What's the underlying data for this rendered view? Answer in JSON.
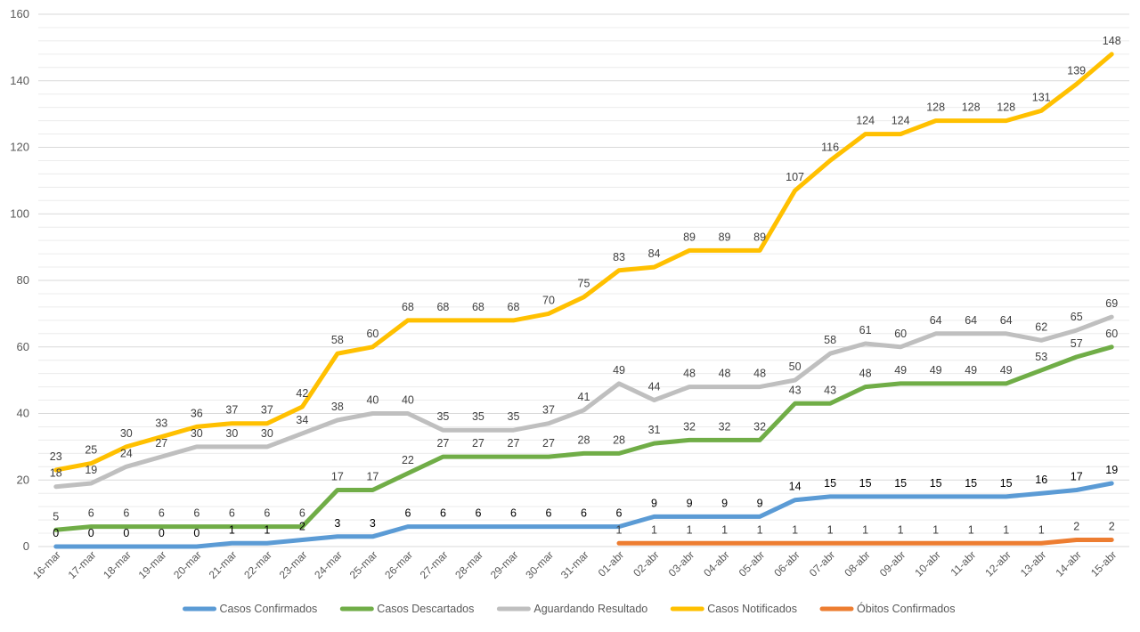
{
  "chart_data": {
    "type": "line",
    "x": [
      "16-mar",
      "17-mar",
      "18-mar",
      "19-mar",
      "20-mar",
      "21-mar",
      "22-mar",
      "23-mar",
      "24-mar",
      "25-mar",
      "26-mar",
      "27-mar",
      "28-mar",
      "29-mar",
      "30-mar",
      "31-mar",
      "01-abr",
      "02-abr",
      "03-abr",
      "04-abr",
      "05-abr",
      "06-abr",
      "07-abr",
      "08-abr",
      "09-abr",
      "10-abr",
      "11-abr",
      "12-abr",
      "13-abr",
      "14-abr",
      "15-abr"
    ],
    "ylim": [
      0,
      160
    ],
    "yticks": [
      0,
      20,
      40,
      60,
      80,
      100,
      120,
      140,
      160
    ],
    "ytick_labels": [
      "0",
      "20",
      "40",
      "60",
      "80",
      "100",
      "120",
      "140",
      "160"
    ],
    "grid": true,
    "legend_position": "bottom",
    "series": [
      {
        "name": "Casos Confirmados",
        "color": "#5B9BD5",
        "values": [
          0,
          0,
          0,
          0,
          0,
          1,
          1,
          2,
          3,
          3,
          6,
          6,
          6,
          6,
          6,
          6,
          6,
          9,
          9,
          9,
          9,
          14,
          15,
          15,
          15,
          15,
          15,
          15,
          16,
          17,
          19
        ],
        "labels": [
          "0",
          "0",
          "0",
          "0",
          "0",
          "1",
          "1",
          "2",
          "3",
          "3",
          "6",
          "6",
          "6",
          "6",
          "6",
          "6",
          "6",
          "9",
          "9",
          "9",
          "9",
          "14",
          "15",
          "15",
          "15",
          "15",
          "15",
          "15",
          "16",
          "17",
          "19"
        ]
      },
      {
        "name": "Casos Descartados",
        "color": "#70AD47",
        "values": [
          5,
          6,
          6,
          6,
          6,
          6,
          6,
          6,
          17,
          17,
          22,
          27,
          27,
          27,
          27,
          28,
          28,
          31,
          32,
          32,
          32,
          43,
          43,
          48,
          49,
          49,
          49,
          49,
          53,
          57,
          60
        ],
        "labels": [
          "5",
          "6",
          "6",
          "6",
          "6",
          "6",
          "6",
          "6",
          "17",
          "17",
          "22",
          "27",
          "27",
          "27",
          "27",
          "28",
          "28",
          "31",
          "32",
          "32",
          "32",
          "43",
          "43",
          "48",
          "49",
          "49",
          "49",
          "49",
          "53",
          "57",
          "60"
        ]
      },
      {
        "name": "Aguardando Resultado",
        "color": "#BFBFBF",
        "values": [
          18,
          19,
          24,
          27,
          30,
          30,
          30,
          34,
          38,
          40,
          40,
          35,
          35,
          35,
          37,
          41,
          49,
          44,
          48,
          48,
          48,
          50,
          58,
          61,
          60,
          64,
          64,
          64,
          62,
          65,
          69
        ],
        "labels": [
          "18",
          "19",
          "24",
          "27",
          "30",
          "30",
          "30",
          "34",
          "38",
          "40",
          "40",
          "35",
          "35",
          "35",
          "37",
          "41",
          "49",
          "44",
          "48",
          "48",
          "48",
          "50",
          "58",
          "61",
          "60",
          "64",
          "64",
          "64",
          "62",
          "65",
          "69"
        ]
      },
      {
        "name": "Casos Notificados",
        "color": "#FFC000",
        "values": [
          23,
          25,
          30,
          33,
          36,
          37,
          37,
          42,
          58,
          60,
          68,
          68,
          68,
          68,
          70,
          75,
          83,
          84,
          89,
          89,
          89,
          107,
          116,
          124,
          124,
          128,
          128,
          128,
          131,
          139,
          148
        ],
        "labels": [
          "23",
          "25",
          "30",
          "33",
          "36",
          "37",
          "37",
          "42",
          "58",
          "60",
          "68",
          "68",
          "68",
          "68",
          "70",
          "75",
          "83",
          "84",
          "89",
          "89",
          "89",
          "107",
          "116",
          "124",
          "124",
          "128",
          "128",
          "128",
          "131",
          "139",
          "148"
        ]
      },
      {
        "name": "Óbitos Confirmados",
        "color": "#ED7D31",
        "values": [
          null,
          null,
          null,
          null,
          null,
          null,
          null,
          null,
          null,
          null,
          null,
          null,
          null,
          null,
          null,
          null,
          1,
          1,
          1,
          1,
          1,
          1,
          1,
          1,
          1,
          1,
          1,
          1,
          1,
          2,
          2
        ],
        "labels": [
          "",
          "",
          "",
          "",
          "",
          "",
          "",
          "",
          "",
          "",
          "",
          "",
          "",
          "",
          "",
          "",
          "1",
          "1",
          "1",
          "1",
          "1",
          "1",
          "1",
          "1",
          "1",
          "1",
          "1",
          "1",
          "1",
          "2",
          "2"
        ]
      }
    ]
  }
}
